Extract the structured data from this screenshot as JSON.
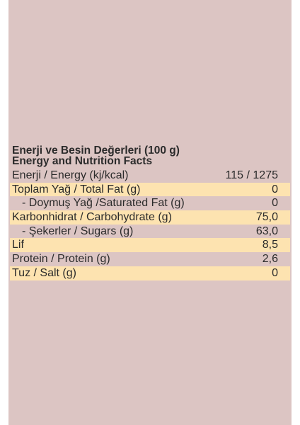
{
  "header": {
    "line1": "Enerji ve Besin Değerleri (100 g)",
    "line2": "Energy and Nutrition Facts"
  },
  "rows": [
    {
      "label": "Enerji / Energy (kj/kcal)",
      "value": "115 / 1275",
      "shaded": false,
      "indent": false
    },
    {
      "label": "Toplam Yağ / Total Fat (g)",
      "value": "0",
      "shaded": true,
      "indent": false
    },
    {
      "label": "- Doymuş Yağ /Saturated Fat (g)",
      "value": "0",
      "shaded": false,
      "indent": true
    },
    {
      "label": "Karbonhidrat / Carbohydrate (g)",
      "value": "75,0",
      "shaded": true,
      "indent": false
    },
    {
      "label": "- Şekerler / Sugars (g)",
      "value": "63,0",
      "shaded": false,
      "indent": true
    },
    {
      "label": "Lif",
      "value": "8,5",
      "shaded": true,
      "indent": false
    },
    {
      "label": "Protein / Protein (g)",
      "value": "2,6",
      "shaded": false,
      "indent": false
    },
    {
      "label": "Tuz / Salt (g)",
      "value": "0",
      "shaded": true,
      "indent": false
    }
  ],
  "colors": {
    "panel_background": "#dcc5c3",
    "row_highlight": "#fde3b0",
    "text": "#2b2b2b"
  }
}
